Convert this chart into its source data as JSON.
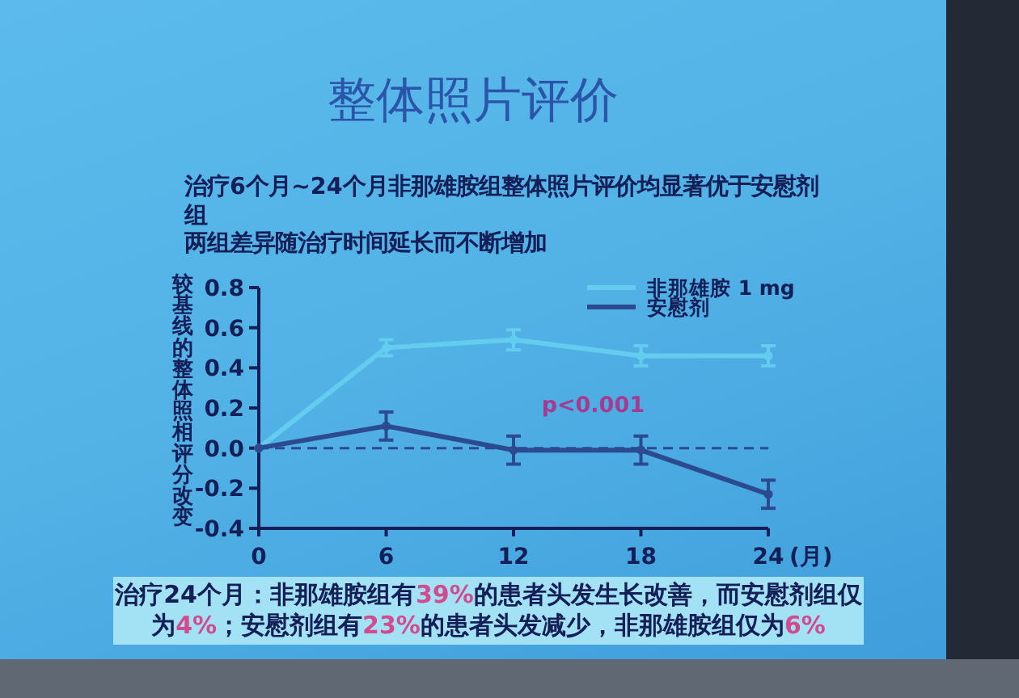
{
  "chart_data": {
    "type": "line",
    "title": "整体照片评价",
    "xlabel": "(月)",
    "ylabel": "较基线的整体照相评分改变",
    "annotations": [
      "治疗6个月~24个月非那雄胺组整体照片评价均显著优于安慰剂组",
      "两组差异随治疗时间延长而不断增加",
      "p<0.001",
      "治疗24个月：非那雄胺组有39%的患者头发生长改善，而安慰剂组仅为4%；安慰剂组有23%的患者头发减少，非那雄胺组仅为6%"
    ],
    "x": [
      0,
      6,
      12,
      18,
      24
    ],
    "series": [
      {
        "name": "非那雄胺 1 mg",
        "color": "#63ccef",
        "values": [
          0,
          0.5,
          0.54,
          0.46,
          0.46
        ],
        "errors": [
          null,
          0.04,
          0.05,
          0.05,
          0.05
        ]
      },
      {
        "name": "安慰剂",
        "color": "#2c4a90",
        "values": [
          0,
          0.11,
          -0.01,
          -0.01,
          -0.23
        ],
        "errors": [
          null,
          0.07,
          0.07,
          0.07,
          0.07
        ]
      }
    ],
    "xlim": [
      0,
      24
    ],
    "xticks": [
      0,
      6,
      12,
      18,
      24
    ],
    "ylim": [
      -0.4,
      0.8
    ],
    "yticks": [
      {
        "value": -0.4,
        "label": "-0.4"
      },
      {
        "value": -0.2,
        "label": "-0.2"
      },
      {
        "value": 0,
        "label": "0.0"
      },
      {
        "value": 0.2,
        "label": "0.2"
      },
      {
        "value": 0.4,
        "label": "0.4"
      },
      {
        "value": 0.6,
        "label": "0.6"
      },
      {
        "value": 0.8,
        "label": "0.8"
      }
    ],
    "ref_lines": [
      {
        "axis": "y",
        "value": 0,
        "color": "#2c4a90",
        "line_style": "dashed"
      }
    ],
    "legend": "top right",
    "marker": "circle",
    "line_style": "solid"
  }
}
